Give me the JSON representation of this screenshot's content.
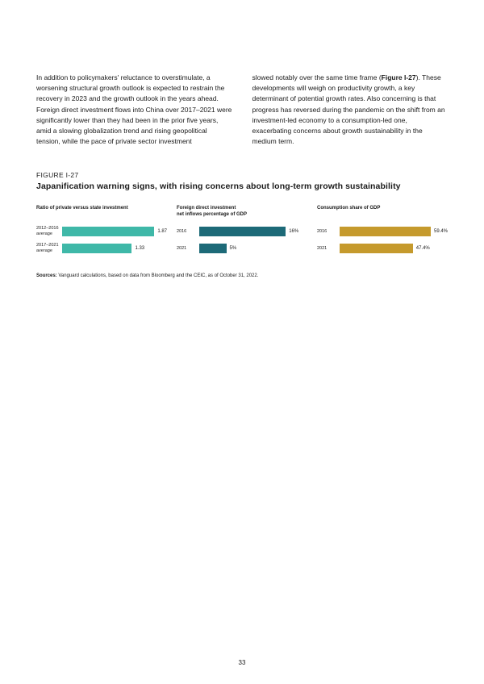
{
  "body": {
    "col1": "In addition to policymakers' reluctance to overstimulate, a worsening structural growth outlook is expected to restrain the recovery in 2023 and the growth outlook in the years ahead. Foreign direct investment flows into China over 2017–2021 were significantly lower than they had been in the prior five years, amid a slowing globalization trend and rising geopolitical tension, while the pace of private sector investment",
    "col2_pre": "slowed notably over the same time frame (",
    "col2_bold": "Figure I-27",
    "col2_post": "). These developments will weigh on productivity growth, a key determinant of potential growth rates. Also concerning is that progress has reversed during the pandemic on the shift from an investment-led economy to a consumption-led one, exacerbating concerns about growth sustainability in the medium term."
  },
  "figure": {
    "label": "FIGURE I-27",
    "title": "Japanification warning signs, with rising concerns about long-term growth sustainability"
  },
  "chart1": {
    "title": "Ratio of private versus state investment",
    "color": "#3fb8a8",
    "bars": [
      {
        "label1": "2012–2016",
        "label2": "average",
        "value": 1.87,
        "display": "1.87",
        "max": 2.0
      },
      {
        "label1": "2017–2021",
        "label2": "average",
        "value": 1.33,
        "display": "1.33",
        "max": 2.0
      }
    ]
  },
  "chart2": {
    "title1": "Foreign direct investment",
    "title2": "net inflows percentage of GDP",
    "color": "#1d6a78",
    "bars": [
      {
        "label": "2016",
        "value": 16,
        "display": "16%",
        "max": 20
      },
      {
        "label": "2021",
        "value": 5,
        "display": "5%",
        "max": 20
      }
    ]
  },
  "chart3": {
    "title": "Consumption share of GDP",
    "color": "#c59a2d",
    "bars": [
      {
        "label": "2016",
        "value": 59.4,
        "display": "59.4%",
        "max": 70
      },
      {
        "label": "2021",
        "value": 47.4,
        "display": "47.4%",
        "max": 70
      }
    ]
  },
  "sources": {
    "label": "Sources:",
    "text": " Vanguard calculations, based on data from Bloomberg and the CEIC, as of October 31, 2022."
  },
  "pageNumber": "33"
}
